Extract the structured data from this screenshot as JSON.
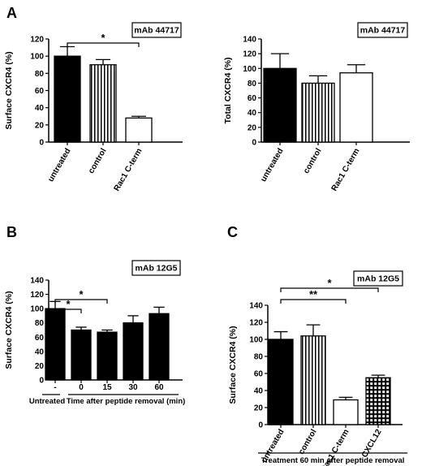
{
  "panels": {
    "A": "A",
    "B": "B",
    "C": "C"
  },
  "chart_data": [
    {
      "id": "A-left",
      "type": "bar",
      "panel": "A",
      "ylabel": "Surface CXCR4 (%)",
      "ylim": [
        0,
        120
      ],
      "yticks": [
        0,
        20,
        40,
        60,
        80,
        100,
        120
      ],
      "antibody": "mAb 44717",
      "categories": [
        "untreated",
        "control",
        "Rac1 C-term"
      ],
      "values": [
        100,
        90,
        28
      ],
      "errors": [
        11,
        6,
        2
      ],
      "fills": [
        "solid",
        "vstripes",
        "open"
      ],
      "significance": [
        {
          "from": 0,
          "to": 2,
          "label": "*"
        }
      ]
    },
    {
      "id": "A-right",
      "type": "bar",
      "panel": "A",
      "ylabel": "Total CXCR4 (%)",
      "ylim": [
        0,
        140
      ],
      "yticks": [
        0,
        20,
        40,
        60,
        80,
        100,
        120,
        140
      ],
      "antibody": "mAb 44717",
      "categories": [
        "untreated",
        "control",
        "Rac1 C-term"
      ],
      "values": [
        100,
        80,
        94
      ],
      "errors": [
        20,
        10,
        11
      ],
      "fills": [
        "solid",
        "vstripes",
        "open"
      ],
      "significance": []
    },
    {
      "id": "B",
      "type": "bar",
      "panel": "B",
      "ylabel": "Surface CXCR4 (%)",
      "ylim": [
        0,
        140
      ],
      "yticks": [
        0,
        20,
        40,
        60,
        80,
        100,
        120,
        140
      ],
      "antibody": "mAb 12G5",
      "categories": [
        "-",
        "0",
        "15",
        "30",
        "60"
      ],
      "values": [
        100,
        70,
        67,
        80,
        93
      ],
      "errors": [
        10,
        4,
        3,
        10,
        9
      ],
      "fills": [
        "solid",
        "solid",
        "solid",
        "solid",
        "solid"
      ],
      "significance": [
        {
          "from": 0,
          "to": 1,
          "label": "*"
        },
        {
          "from": 0,
          "to": 2,
          "label": "*"
        }
      ],
      "group_labels": [
        "Untreated",
        "Time after peptide removal (min)"
      ]
    },
    {
      "id": "C",
      "type": "bar",
      "panel": "C",
      "ylabel": "Surface CXCR4 (%)",
      "ylim": [
        0,
        140
      ],
      "yticks": [
        0,
        20,
        40,
        60,
        80,
        100,
        120,
        140
      ],
      "antibody": "mAb 12G5",
      "categories": [
        "untreated",
        "control",
        "Rac1 C-term",
        "CXCL12"
      ],
      "values": [
        100,
        104,
        29,
        55
      ],
      "errors": [
        9,
        13,
        3,
        3
      ],
      "fills": [
        "solid",
        "vstripes",
        "open",
        "grid"
      ],
      "significance": [
        {
          "from": 0,
          "to": 2,
          "label": "**"
        },
        {
          "from": 0,
          "to": 3,
          "label": "*"
        }
      ],
      "footer": "Treatment 60 min after peptide removal"
    }
  ],
  "colors": {
    "ink": "#000000",
    "background": "#ffffff"
  }
}
